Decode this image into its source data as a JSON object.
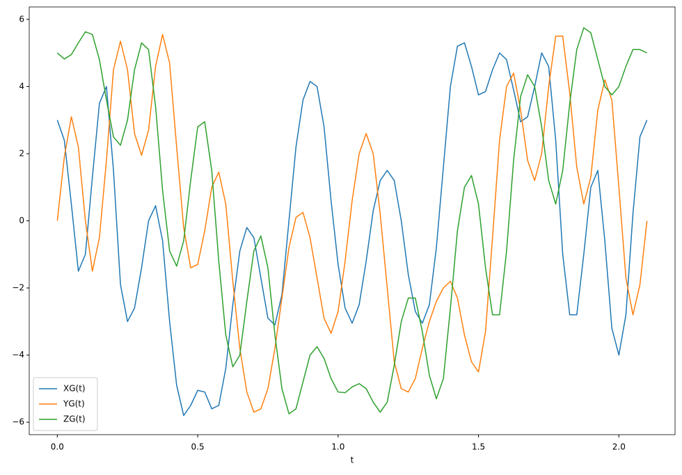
{
  "chart_data": {
    "type": "line",
    "xlabel": "t",
    "x": [
      0,
      0.025,
      0.05,
      0.075,
      0.1,
      0.125,
      0.15,
      0.175,
      0.2,
      0.225,
      0.25,
      0.275,
      0.3,
      0.325,
      0.35,
      0.375,
      0.4,
      0.425,
      0.45,
      0.475,
      0.5,
      0.525,
      0.55,
      0.575,
      0.6,
      0.625,
      0.65,
      0.675,
      0.7,
      0.725,
      0.75,
      0.775,
      0.8,
      0.825,
      0.85,
      0.875,
      0.9,
      0.925,
      0.95,
      0.975,
      1.0,
      1.025,
      1.05,
      1.075,
      1.1,
      1.125,
      1.15,
      1.175,
      1.2,
      1.225,
      1.25,
      1.275,
      1.3,
      1.325,
      1.35,
      1.375,
      1.4,
      1.425,
      1.45,
      1.475,
      1.5,
      1.525,
      1.55,
      1.575,
      1.6,
      1.625,
      1.65,
      1.675,
      1.7,
      1.725,
      1.75,
      1.775,
      1.8,
      1.825,
      1.85,
      1.875,
      1.9,
      1.925,
      1.95,
      1.975,
      2.0,
      2.025,
      2.05,
      2.075,
      2.1
    ],
    "series": [
      {
        "name": "XG(t)",
        "color": "#1f77b4",
        "values": [
          3.0,
          2.4,
          0.5,
          -1.5,
          -1.0,
          1.3,
          3.5,
          4.0,
          1.5,
          -1.9,
          -3.0,
          -2.6,
          -1.4,
          0.0,
          0.45,
          -0.6,
          -3.0,
          -4.9,
          -5.8,
          -5.5,
          -5.05,
          -5.1,
          -5.6,
          -5.5,
          -4.4,
          -2.5,
          -0.9,
          -0.2,
          -0.5,
          -1.7,
          -2.9,
          -3.1,
          -2.2,
          0.0,
          2.2,
          3.6,
          4.15,
          4.0,
          2.8,
          0.6,
          -1.3,
          -2.6,
          -3.05,
          -2.5,
          -1.2,
          0.3,
          1.2,
          1.5,
          1.2,
          0.0,
          -1.6,
          -2.7,
          -3.05,
          -2.5,
          -0.8,
          1.6,
          4.0,
          5.2,
          5.3,
          4.6,
          3.75,
          3.85,
          4.5,
          5.0,
          4.8,
          3.9,
          2.95,
          3.1,
          4.0,
          5.0,
          4.6,
          2.4,
          -1.0,
          -2.8,
          -2.8,
          -1.0,
          1.0,
          1.5,
          -0.6,
          -3.2,
          -4.0,
          -2.8,
          0.2,
          2.5,
          3.0
        ]
      },
      {
        "name": "YG(t)",
        "color": "#ff7f0e",
        "values": [
          0.0,
          1.9,
          3.1,
          2.2,
          0.0,
          -1.5,
          -0.5,
          1.8,
          4.5,
          5.35,
          4.5,
          2.6,
          1.95,
          2.7,
          4.6,
          5.55,
          4.7,
          2.2,
          -0.2,
          -1.4,
          -1.3,
          -0.3,
          1.0,
          1.45,
          0.5,
          -1.8,
          -3.8,
          -5.1,
          -5.7,
          -5.6,
          -5.0,
          -3.8,
          -2.3,
          -0.8,
          0.1,
          0.25,
          -0.5,
          -1.7,
          -2.9,
          -3.35,
          -2.7,
          -1.2,
          0.6,
          2.0,
          2.6,
          2.0,
          0.2,
          -2.0,
          -4.2,
          -5.0,
          -5.1,
          -4.7,
          -3.8,
          -3.0,
          -2.4,
          -2.0,
          -1.8,
          -2.3,
          -3.4,
          -4.2,
          -4.5,
          -3.3,
          -0.5,
          2.4,
          4.0,
          4.4,
          3.3,
          1.8,
          1.2,
          2.0,
          4.0,
          5.5,
          5.5,
          3.8,
          1.6,
          0.5,
          1.3,
          3.3,
          4.2,
          3.6,
          1.0,
          -1.7,
          -2.8,
          -1.9,
          0.0
        ]
      },
      {
        "name": "ZG(t)",
        "color": "#2ca02c",
        "values": [
          5.0,
          4.82,
          4.95,
          5.3,
          5.63,
          5.55,
          4.8,
          3.6,
          2.5,
          2.25,
          3.0,
          4.5,
          5.3,
          5.1,
          3.4,
          0.9,
          -0.9,
          -1.35,
          -0.6,
          1.2,
          2.8,
          2.95,
          1.5,
          -1.2,
          -3.4,
          -4.35,
          -4.0,
          -2.4,
          -0.9,
          -0.45,
          -1.4,
          -3.4,
          -5.0,
          -5.75,
          -5.6,
          -4.8,
          -4.0,
          -3.75,
          -4.1,
          -4.7,
          -5.1,
          -5.12,
          -4.95,
          -4.85,
          -5.0,
          -5.4,
          -5.7,
          -5.4,
          -4.3,
          -3.0,
          -2.3,
          -2.3,
          -3.3,
          -4.6,
          -5.3,
          -4.7,
          -2.6,
          -0.3,
          1.0,
          1.35,
          0.5,
          -1.4,
          -2.8,
          -2.8,
          -0.9,
          1.8,
          3.7,
          4.35,
          4.0,
          2.8,
          1.2,
          0.5,
          1.5,
          3.5,
          5.1,
          5.75,
          5.6,
          4.8,
          4.0,
          3.75,
          4.0,
          4.6,
          5.1,
          5.1,
          5.0
        ]
      }
    ],
    "xlim": [
      -0.1,
      2.2
    ],
    "xticks": [
      {
        "value": 0,
        "label": "0.0"
      },
      0.5,
      {
        "value": 1,
        "label": "1.0"
      },
      1.5,
      {
        "value": 2,
        "label": "2.0"
      }
    ],
    "ylim": [
      -6.37,
      6.37
    ],
    "yticks": [
      {
        "value": -6,
        "label": "−6"
      },
      {
        "value": -4,
        "label": "−4"
      },
      {
        "value": -2,
        "label": "−2"
      },
      0,
      2,
      4,
      6
    ],
    "grid": false,
    "legend": "lower left"
  }
}
